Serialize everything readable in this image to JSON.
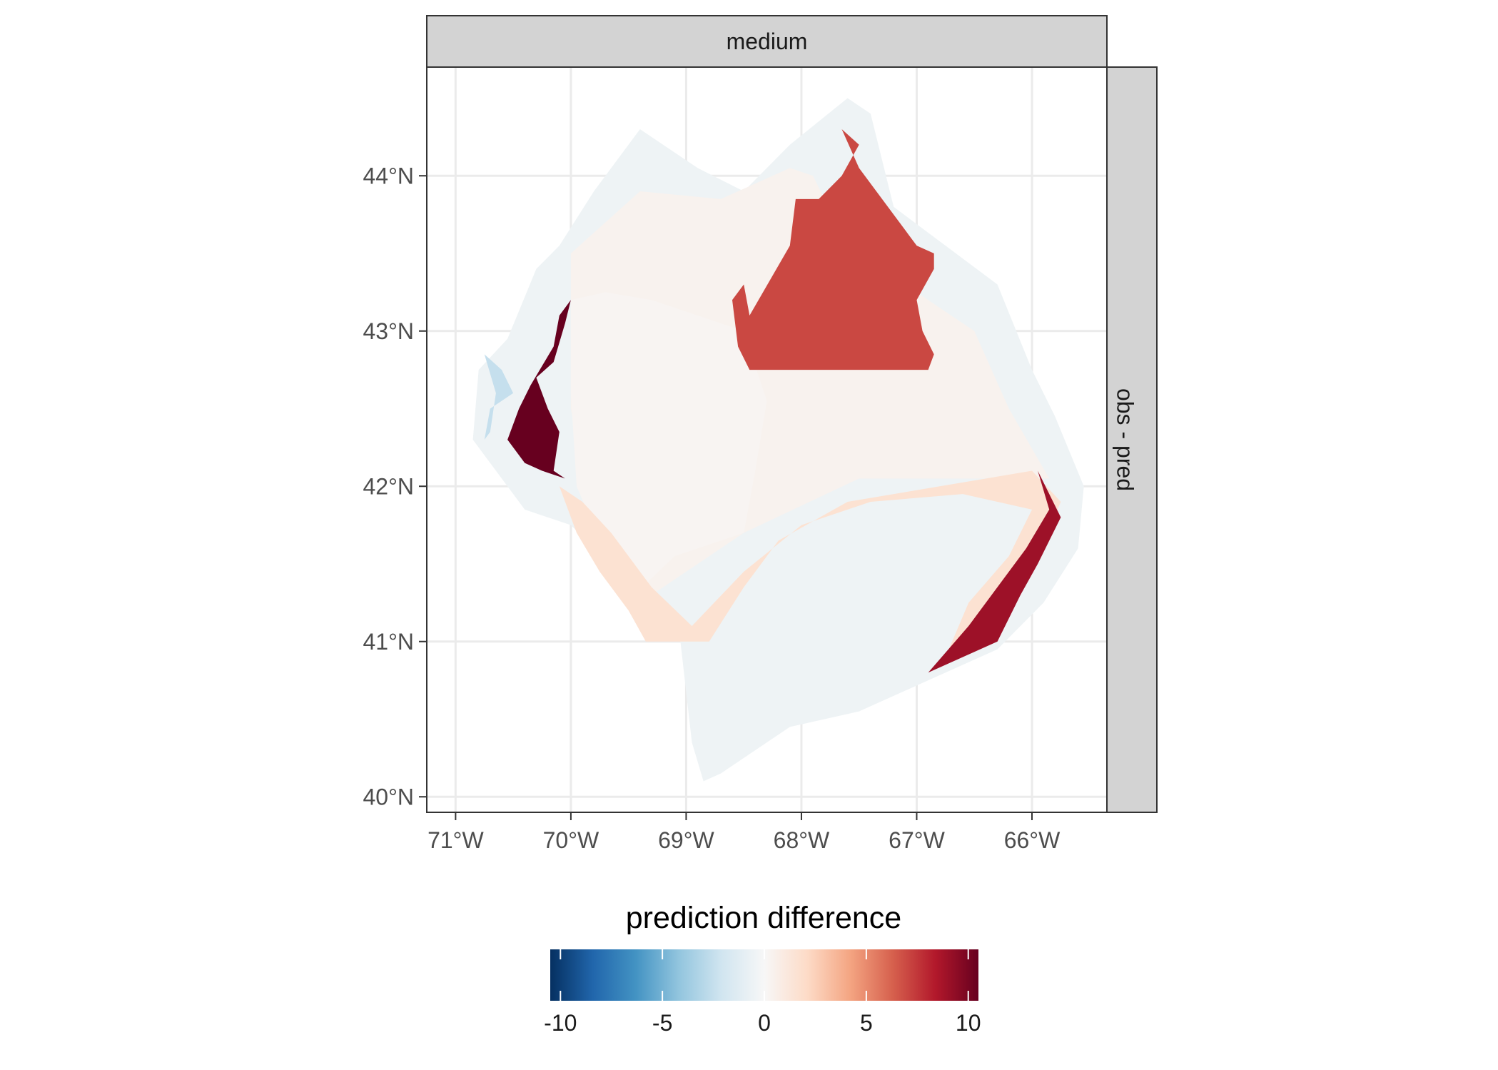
{
  "chart_data": {
    "type": "choropleth-map",
    "facet_top": "medium",
    "facet_right": "obs - pred",
    "x_axis": {
      "range": [
        -71.25,
        -65.35
      ],
      "ticks": [
        {
          "value": -71,
          "label": "71°W"
        },
        {
          "value": -70,
          "label": "70°W"
        },
        {
          "value": -69,
          "label": "69°W"
        },
        {
          "value": -68,
          "label": "68°W"
        },
        {
          "value": -67,
          "label": "67°W"
        },
        {
          "value": -66,
          "label": "66°W"
        }
      ]
    },
    "y_axis": {
      "range": [
        39.9,
        44.7
      ],
      "ticks": [
        {
          "value": 40,
          "label": "40°N"
        },
        {
          "value": 41,
          "label": "41°N"
        },
        {
          "value": 42,
          "label": "42°N"
        },
        {
          "value": 43,
          "label": "43°N"
        },
        {
          "value": 44,
          "label": "44°N"
        }
      ]
    },
    "grid": true,
    "legend": {
      "title": "prediction difference",
      "position": "bottom",
      "range": [
        -10.5,
        10.5
      ],
      "ticks": [
        {
          "value": -10,
          "label": "-10"
        },
        {
          "value": -5,
          "label": "-5"
        },
        {
          "value": 0,
          "label": "0"
        },
        {
          "value": 5,
          "label": "5"
        },
        {
          "value": 10,
          "label": "10"
        }
      ],
      "colors": [
        "#053061",
        "#2166ac",
        "#4393c3",
        "#92c5de",
        "#d1e5f0",
        "#f7f7f7",
        "#fddbc7",
        "#f4a582",
        "#d6604d",
        "#b2182b",
        "#67001f"
      ]
    },
    "regions": [
      {
        "id": "outer-shelf",
        "value": -0.5,
        "polygon": [
          [
            -69.4,
            44.3
          ],
          [
            -68.9,
            44.05
          ],
          [
            -68.5,
            43.9
          ],
          [
            -68.1,
            44.2
          ],
          [
            -67.6,
            44.5
          ],
          [
            -67.4,
            44.4
          ],
          [
            -67.2,
            43.8
          ],
          [
            -66.3,
            43.3
          ],
          [
            -66.0,
            42.75
          ],
          [
            -65.8,
            42.45
          ],
          [
            -65.55,
            42.0
          ],
          [
            -65.6,
            41.6
          ],
          [
            -65.9,
            41.25
          ],
          [
            -66.3,
            40.95
          ],
          [
            -66.9,
            40.75
          ],
          [
            -67.5,
            40.55
          ],
          [
            -68.1,
            40.45
          ],
          [
            -68.7,
            40.15
          ],
          [
            -68.85,
            40.1
          ],
          [
            -68.95,
            40.35
          ],
          [
            -69.05,
            41.0
          ],
          [
            -69.3,
            41.1
          ],
          [
            -69.6,
            41.3
          ],
          [
            -69.8,
            41.6
          ],
          [
            -70.0,
            41.75
          ],
          [
            -70.4,
            41.85
          ],
          [
            -70.6,
            42.05
          ],
          [
            -70.85,
            42.3
          ],
          [
            -70.8,
            42.75
          ],
          [
            -70.55,
            42.95
          ],
          [
            -70.3,
            43.4
          ],
          [
            -70.1,
            43.55
          ],
          [
            -69.8,
            43.9
          ]
        ]
      },
      {
        "id": "northern-gulf",
        "value": 0.4,
        "polygon": [
          [
            -70.0,
            43.5
          ],
          [
            -69.4,
            43.9
          ],
          [
            -68.7,
            43.85
          ],
          [
            -68.1,
            44.05
          ],
          [
            -67.9,
            44.0
          ],
          [
            -67.7,
            43.7
          ],
          [
            -67.3,
            43.4
          ],
          [
            -66.5,
            43.0
          ],
          [
            -66.2,
            42.5
          ],
          [
            -65.85,
            42.05
          ],
          [
            -67.5,
            42.05
          ],
          [
            -68.5,
            41.7
          ],
          [
            -69.3,
            41.3
          ],
          [
            -69.6,
            41.5
          ],
          [
            -69.85,
            41.9
          ],
          [
            -70.0,
            42.5
          ]
        ]
      },
      {
        "id": "central-gulf",
        "value": 0.2,
        "polygon": [
          [
            -70.0,
            43.2
          ],
          [
            -69.7,
            43.25
          ],
          [
            -69.3,
            43.2
          ],
          [
            -68.5,
            43.0
          ],
          [
            -68.3,
            42.55
          ],
          [
            -68.4,
            42.1
          ],
          [
            -68.5,
            41.7
          ],
          [
            -69.1,
            41.55
          ],
          [
            -69.45,
            41.3
          ],
          [
            -69.75,
            41.65
          ],
          [
            -69.95,
            42.0
          ],
          [
            -70.0,
            42.6
          ]
        ]
      },
      {
        "id": "south-shelf-band",
        "value": 1.6,
        "polygon": [
          [
            -70.1,
            42.0
          ],
          [
            -69.95,
            41.7
          ],
          [
            -69.75,
            41.45
          ],
          [
            -69.5,
            41.2
          ],
          [
            -69.35,
            41.0
          ],
          [
            -68.8,
            41.0
          ],
          [
            -68.5,
            41.35
          ],
          [
            -68.2,
            41.65
          ],
          [
            -67.6,
            41.9
          ],
          [
            -66.8,
            42.0
          ],
          [
            -66.0,
            42.1
          ],
          [
            -65.75,
            41.9
          ],
          [
            -65.95,
            41.55
          ],
          [
            -66.4,
            41.15
          ],
          [
            -66.75,
            40.9
          ],
          [
            -66.55,
            41.25
          ],
          [
            -66.2,
            41.55
          ],
          [
            -66.0,
            41.85
          ],
          [
            -66.6,
            41.95
          ],
          [
            -67.4,
            41.9
          ],
          [
            -68.0,
            41.75
          ],
          [
            -68.5,
            41.45
          ],
          [
            -68.95,
            41.1
          ],
          [
            -69.3,
            41.35
          ],
          [
            -69.65,
            41.7
          ],
          [
            -69.9,
            41.9
          ]
        ]
      },
      {
        "id": "eastern-basin",
        "value": 7.0,
        "polygon": [
          [
            -67.65,
            44.3
          ],
          [
            -67.5,
            44.2
          ],
          [
            -67.65,
            44.0
          ],
          [
            -67.85,
            43.85
          ],
          [
            -68.05,
            43.85
          ],
          [
            -68.1,
            43.55
          ],
          [
            -68.45,
            43.1
          ],
          [
            -68.5,
            43.3
          ],
          [
            -68.6,
            43.2
          ],
          [
            -68.55,
            42.9
          ],
          [
            -68.45,
            42.75
          ],
          [
            -67.5,
            42.75
          ],
          [
            -66.9,
            42.75
          ],
          [
            -66.85,
            42.85
          ],
          [
            -66.95,
            43.0
          ],
          [
            -67.0,
            43.2
          ],
          [
            -66.85,
            43.4
          ],
          [
            -66.85,
            43.5
          ],
          [
            -67.0,
            43.55
          ],
          [
            -67.2,
            43.75
          ],
          [
            -67.5,
            44.05
          ]
        ]
      },
      {
        "id": "western-coast",
        "value": 10.5,
        "polygon": [
          [
            -70.0,
            43.2
          ],
          [
            -70.05,
            43.05
          ],
          [
            -70.15,
            42.8
          ],
          [
            -70.3,
            42.7
          ],
          [
            -70.2,
            42.5
          ],
          [
            -70.1,
            42.35
          ],
          [
            -70.15,
            42.1
          ],
          [
            -70.05,
            42.05
          ],
          [
            -70.25,
            42.1
          ],
          [
            -70.4,
            42.15
          ],
          [
            -70.55,
            42.3
          ],
          [
            -70.45,
            42.5
          ],
          [
            -70.35,
            42.65
          ],
          [
            -70.15,
            42.9
          ],
          [
            -70.1,
            43.1
          ]
        ]
      },
      {
        "id": "eastern-edge",
        "value": 9.0,
        "polygon": [
          [
            -65.95,
            42.1
          ],
          [
            -65.75,
            41.8
          ],
          [
            -65.95,
            41.5
          ],
          [
            -66.1,
            41.3
          ],
          [
            -66.3,
            41.0
          ],
          [
            -66.9,
            40.8
          ],
          [
            -66.55,
            41.1
          ],
          [
            -66.25,
            41.4
          ],
          [
            -66.05,
            41.6
          ],
          [
            -65.85,
            41.85
          ]
        ]
      },
      {
        "id": "coastal-sliver",
        "value": -2.5,
        "polygon": [
          [
            -70.75,
            42.85
          ],
          [
            -70.6,
            42.75
          ],
          [
            -70.5,
            42.6
          ],
          [
            -70.7,
            42.5
          ],
          [
            -70.75,
            42.3
          ],
          [
            -70.7,
            42.35
          ],
          [
            -70.65,
            42.6
          ]
        ]
      }
    ]
  }
}
